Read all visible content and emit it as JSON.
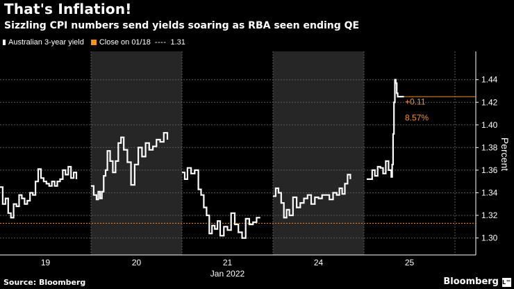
{
  "header": {
    "title": "That's Inflation!",
    "subtitle": "Sizzling CPI numbers send yields soaring as RBA seen ending QE"
  },
  "legend": {
    "series_label": "Australian 3-year yield",
    "close_label": "Close on 01/18",
    "close_value": "1.31"
  },
  "footer": {
    "source": "Source: Bloomberg",
    "brand": "Bloomberg",
    "brand_icon": "L™"
  },
  "colors": {
    "background": "#000000",
    "line": "#ffffff",
    "accent": "#f39221",
    "shade": "#262626",
    "grid": "#5a5a5a"
  },
  "chart_data": {
    "type": "line",
    "title": "That's Inflation!",
    "subtitle": "Sizzling CPI numbers send yields soaring as RBA seen ending QE",
    "ylabel": "Percent",
    "xlabel": "Jan 2022",
    "ylim": [
      1.285,
      1.465
    ],
    "yticks": [
      1.3,
      1.32,
      1.34,
      1.36,
      1.38,
      1.4,
      1.42,
      1.44
    ],
    "ytick_labels": [
      "1.30",
      "1.32",
      "1.34",
      "1.36",
      "1.38",
      "1.40",
      "1.42",
      "1.44"
    ],
    "xlim": [
      0,
      5.2
    ],
    "day_ticks": [
      {
        "label": "19",
        "x": 0.5
      },
      {
        "label": "20",
        "x": 1.5
      },
      {
        "label": "21",
        "x": 2.5
      },
      {
        "label": "24",
        "x": 3.5
      },
      {
        "label": "25",
        "x": 4.5
      }
    ],
    "xlabel_position": 2.5,
    "shaded_days": [
      [
        1,
        2
      ],
      [
        3,
        4
      ]
    ],
    "reference_line": {
      "label": "Close on 01/18",
      "value": 1.313
    },
    "last_value_line": 1.425,
    "annotation": {
      "change": "+0.11",
      "percent": "8.57%"
    },
    "grid": true,
    "legend_position": "top-left",
    "series": [
      {
        "name": "Australian 3-year yield",
        "x": [
          0.0,
          0.03,
          0.06,
          0.09,
          0.12,
          0.15,
          0.18,
          0.21,
          0.24,
          0.27,
          0.3,
          0.33,
          0.36,
          0.39,
          0.42,
          0.45,
          0.48,
          0.51,
          0.54,
          0.57,
          0.6,
          0.63,
          0.66,
          0.69,
          0.72,
          0.75,
          0.78,
          0.81,
          0.84,
          1.0,
          1.03,
          1.06,
          1.08,
          1.1,
          1.12,
          1.14,
          1.16,
          1.18,
          1.21,
          1.24,
          1.27,
          1.3,
          1.33,
          1.36,
          1.4,
          1.44,
          1.48,
          1.52,
          1.56,
          1.6,
          1.64,
          1.68,
          1.72,
          1.76,
          1.8,
          1.84,
          2.0,
          2.03,
          2.06,
          2.1,
          2.14,
          2.18,
          2.21,
          2.24,
          2.27,
          2.3,
          2.33,
          2.36,
          2.39,
          2.42,
          2.46,
          2.5,
          2.54,
          2.58,
          2.62,
          2.66,
          2.7,
          2.74,
          2.78,
          2.82,
          2.86,
          3.0,
          3.03,
          3.06,
          3.09,
          3.12,
          3.15,
          3.18,
          3.22,
          3.26,
          3.3,
          3.34,
          3.38,
          3.42,
          3.46,
          3.5,
          3.54,
          3.58,
          3.62,
          3.66,
          3.7,
          3.73,
          3.76,
          3.79,
          3.82,
          3.85,
          4.03,
          4.06,
          4.09,
          4.12,
          4.15,
          4.18,
          4.21,
          4.24,
          4.27,
          4.3,
          4.31,
          4.32,
          4.33,
          4.34,
          4.35,
          4.36,
          4.37,
          4.38,
          4.4,
          4.42,
          4.44
        ],
        "values": [
          1.345,
          1.33,
          1.335,
          1.322,
          1.318,
          1.33,
          1.328,
          1.338,
          1.335,
          1.33,
          1.333,
          1.34,
          1.338,
          1.35,
          1.361,
          1.353,
          1.35,
          1.348,
          1.346,
          1.35,
          1.346,
          1.35,
          1.352,
          1.36,
          1.356,
          1.363,
          1.353,
          1.358,
          1.352,
          1.346,
          1.338,
          1.334,
          1.341,
          1.335,
          1.341,
          1.355,
          1.36,
          1.377,
          1.368,
          1.358,
          1.368,
          1.384,
          1.389,
          1.378,
          1.367,
          1.347,
          1.365,
          1.38,
          1.372,
          1.384,
          1.378,
          1.381,
          1.387,
          1.385,
          1.393,
          1.387,
          1.358,
          1.352,
          1.362,
          1.357,
          1.36,
          1.343,
          1.338,
          1.327,
          1.32,
          1.304,
          1.311,
          1.308,
          1.315,
          1.302,
          1.31,
          1.307,
          1.322,
          1.312,
          1.305,
          1.3,
          1.317,
          1.312,
          1.314,
          1.318,
          1.318,
          1.337,
          1.344,
          1.34,
          1.331,
          1.318,
          1.325,
          1.32,
          1.336,
          1.327,
          1.331,
          1.335,
          1.338,
          1.33,
          1.336,
          1.335,
          1.338,
          1.338,
          1.334,
          1.34,
          1.338,
          1.344,
          1.339,
          1.348,
          1.356,
          1.352,
          1.352,
          1.352,
          1.36,
          1.355,
          1.363,
          1.362,
          1.357,
          1.368,
          1.36,
          1.354,
          1.365,
          1.392,
          1.42,
          1.44,
          1.437,
          1.428,
          1.425,
          1.425,
          1.425,
          1.425,
          1.425
        ]
      }
    ]
  }
}
